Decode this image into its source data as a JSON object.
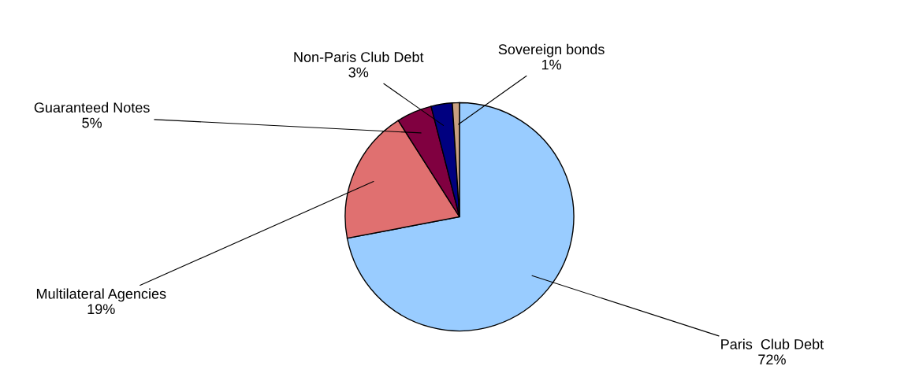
{
  "chart_data": {
    "type": "pie",
    "categories": [
      "Paris  Club Debt",
      "Multilateral Agencies",
      "Guaranteed Notes",
      "Non-Paris Club Debt",
      "Sovereign bonds"
    ],
    "values": [
      72,
      19,
      5,
      3,
      1
    ],
    "value_labels": [
      "72%",
      "19%",
      "5%",
      "3%",
      "1%"
    ],
    "colors": [
      "#99ccff",
      "#e07070",
      "#800040",
      "#000080",
      "#c8a080"
    ]
  }
}
